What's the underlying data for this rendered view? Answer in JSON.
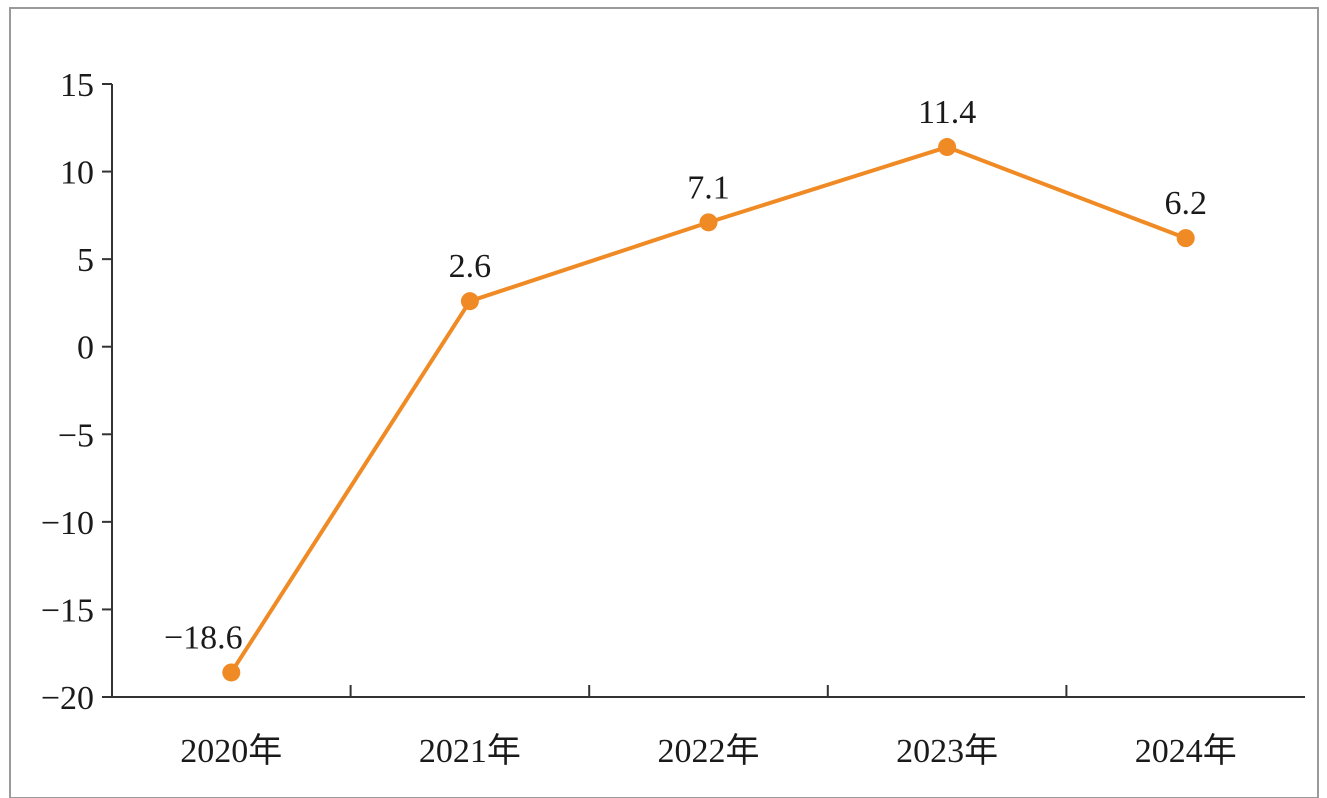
{
  "chart_data": {
    "type": "line",
    "title": "",
    "xlabel": "",
    "ylabel": "",
    "categories": [
      "2020年",
      "2021年",
      "2022年",
      "2023年",
      "2024年"
    ],
    "series": [
      {
        "values": [
          -18.6,
          2.6,
          7.1,
          11.4,
          6.2
        ],
        "color": "#F08A24"
      }
    ],
    "data_labels": [
      "−18.6",
      "2.6",
      "7.1",
      "11.4",
      "6.2"
    ],
    "ylim": [
      -20,
      15
    ],
    "yticks": [
      15,
      10,
      5,
      0,
      -5,
      -10,
      -15,
      -20
    ],
    "ytick_labels": [
      "15",
      "10",
      "5",
      "0",
      "−5",
      "−10",
      "−15",
      "−20"
    ],
    "grid": false,
    "legend": "none"
  }
}
